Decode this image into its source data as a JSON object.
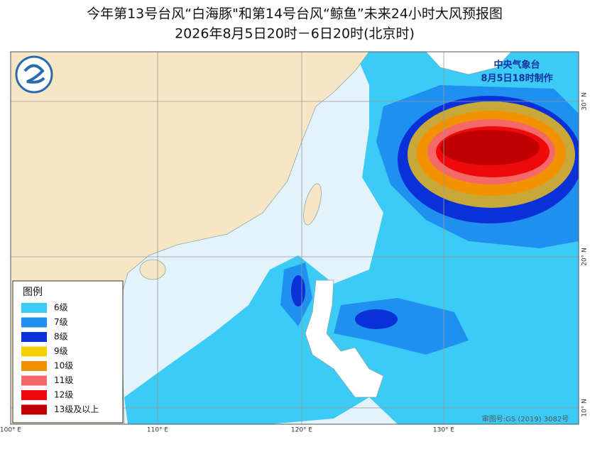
{
  "header": {
    "title": "今年第13号台风“白海豚\"和第14号台风“鲸鱼”未来24小时大风预报图",
    "subtitle": "2026年8月5日20时－6日20时(北京时)"
  },
  "agency": {
    "name": "中央气象台",
    "issued": "8月5日18时制作"
  },
  "legend": {
    "title": "图例",
    "items": [
      {
        "label": "6级",
        "color": "#3ccbf4"
      },
      {
        "label": "7级",
        "color": "#1f8ff0"
      },
      {
        "label": "8级",
        "color": "#0a30d8"
      },
      {
        "label": "9级",
        "color": "#f2cf00"
      },
      {
        "label": "10级",
        "color": "#f39200"
      },
      {
        "label": "11级",
        "color": "#f56868"
      },
      {
        "label": "12级",
        "color": "#ee0a0a"
      },
      {
        "label": "13级及以上",
        "color": "#c00000"
      }
    ]
  },
  "axes": {
    "lon": [
      "100° E",
      "110° E",
      "120° E",
      "130° E"
    ],
    "lat": [
      "30° N",
      "20° N",
      "10° N"
    ]
  },
  "credit": "审图号:GS (2019) 3082号"
}
